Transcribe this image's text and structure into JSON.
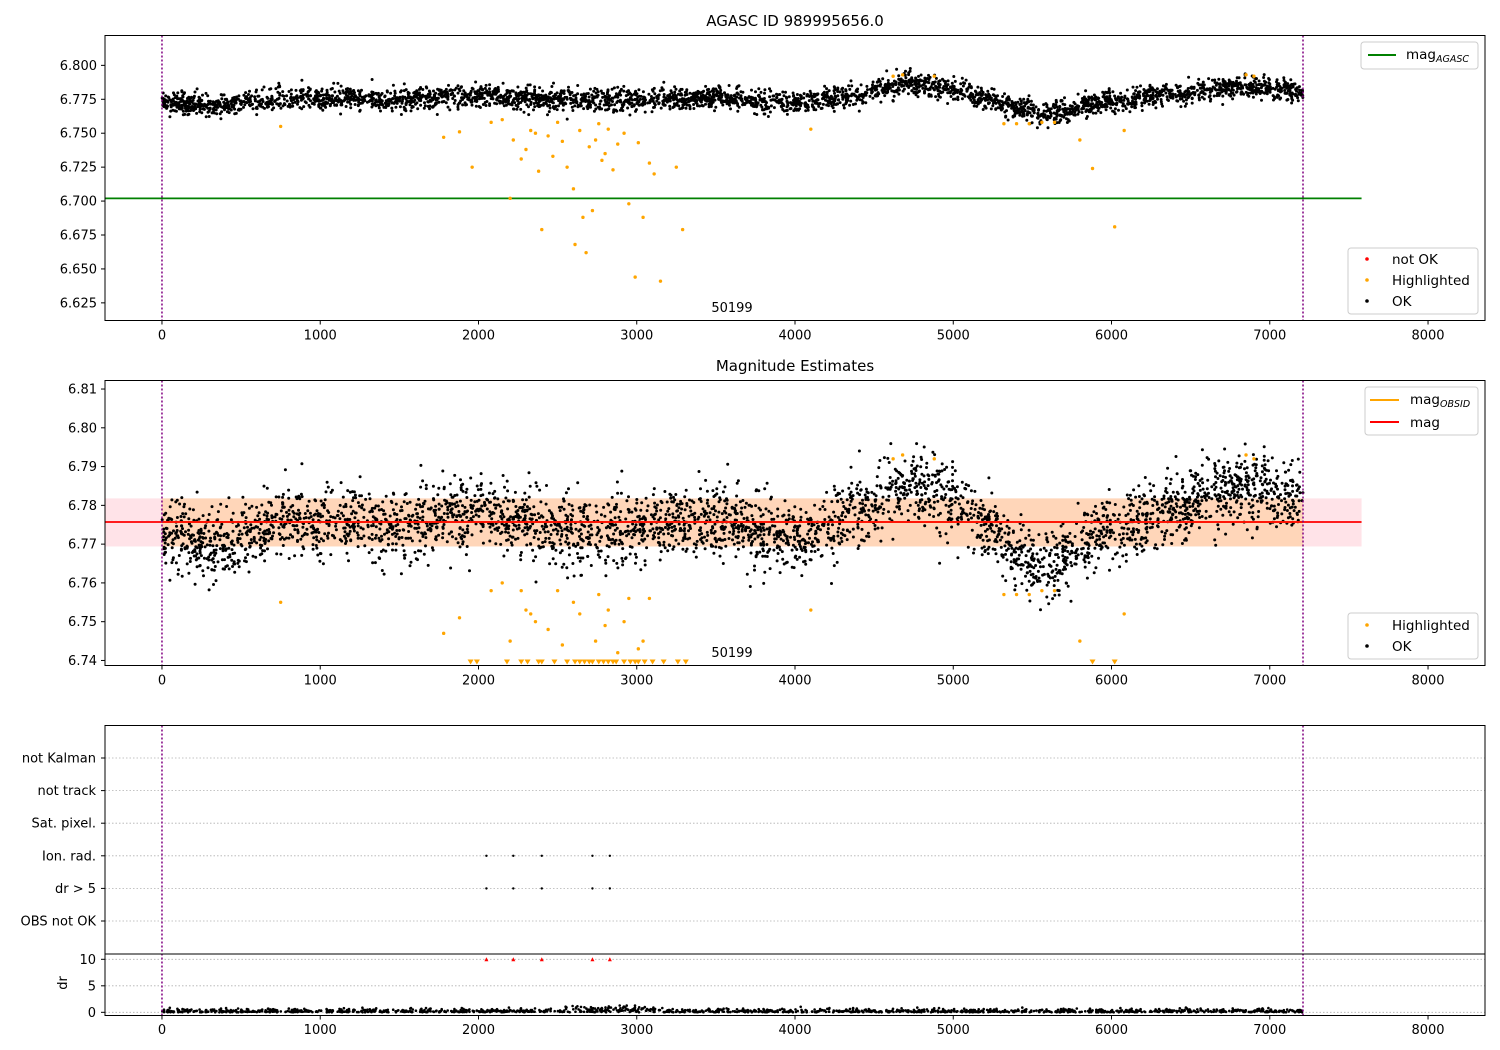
{
  "chart_data": [
    {
      "type": "scatter",
      "title": "AGASC ID 989995656.0",
      "xlim": [
        -360,
        8360
      ],
      "ylim": [
        6.612,
        6.822
      ],
      "xticks": [
        0,
        1000,
        2000,
        3000,
        4000,
        5000,
        6000,
        7000,
        8000
      ],
      "yticks": [
        6.625,
        6.65,
        6.675,
        6.7,
        6.725,
        6.75,
        6.775,
        6.8
      ],
      "ytick_labels": [
        "6.625",
        "6.650",
        "6.675",
        "6.700",
        "6.725",
        "6.750",
        "6.775",
        "6.800"
      ],
      "vlines": [
        0,
        7210
      ],
      "annotation": {
        "text": "50199",
        "x": 3610,
        "y": 6.619
      },
      "hlines": [
        {
          "label": "mag_AGASC",
          "y": 6.702,
          "x0": -360,
          "x1": 7580,
          "color": "#008000"
        }
      ],
      "ok_trend": {
        "x": [
          0,
          300,
          800,
          1500,
          2000,
          2500,
          3000,
          3500,
          4000,
          4400,
          4700,
          5000,
          5300,
          5600,
          5900,
          6300,
          6800,
          7200
        ],
        "y": [
          6.773,
          6.77,
          6.776,
          6.775,
          6.778,
          6.774,
          6.774,
          6.776,
          6.772,
          6.778,
          6.788,
          6.782,
          6.772,
          6.764,
          6.772,
          6.778,
          6.784,
          6.781
        ],
        "spread": 0.004
      },
      "highlighted": {
        "x": [
          750,
          1780,
          1880,
          1960,
          2080,
          2150,
          2200,
          2220,
          2270,
          2300,
          2330,
          2360,
          2380,
          2400,
          2440,
          2470,
          2500,
          2530,
          2560,
          2600,
          2610,
          2640,
          2660,
          2680,
          2700,
          2720,
          2740,
          2760,
          2780,
          2800,
          2820,
          2850,
          2880,
          2920,
          2950,
          2990,
          3010,
          3040,
          3080,
          3110,
          3150,
          3250,
          3290,
          4100,
          4620,
          4680,
          4880,
          5320,
          5400,
          5480,
          5560,
          5640,
          5800,
          5880,
          6020,
          6080,
          6850,
          6900
        ],
        "y": [
          6.755,
          6.747,
          6.751,
          6.725,
          6.758,
          6.76,
          6.702,
          6.745,
          6.731,
          6.738,
          6.752,
          6.75,
          6.722,
          6.679,
          6.748,
          6.733,
          6.758,
          6.744,
          6.725,
          6.709,
          6.668,
          6.752,
          6.688,
          6.662,
          6.74,
          6.693,
          6.745,
          6.757,
          6.73,
          6.735,
          6.753,
          6.723,
          6.742,
          6.75,
          6.698,
          6.644,
          6.743,
          6.688,
          6.728,
          6.72,
          6.641,
          6.725,
          6.679,
          6.753,
          6.792,
          6.793,
          6.792,
          6.757,
          6.757,
          6.757,
          6.758,
          6.758,
          6.745,
          6.724,
          6.681,
          6.752,
          6.793,
          6.792
        ]
      },
      "not_ok": {
        "x": [],
        "y": []
      },
      "legend_lines": [
        "mag_AGASC"
      ],
      "legend_points": [
        "not OK",
        "Highlighted",
        "OK"
      ],
      "legend_placement": "top-right / bottom-right"
    },
    {
      "type": "scatter",
      "title": "Magnitude Estimates",
      "xlim": [
        -360,
        8360
      ],
      "ylim": [
        6.7387,
        6.8122
      ],
      "xticks": [
        0,
        1000,
        2000,
        3000,
        4000,
        5000,
        6000,
        7000,
        8000
      ],
      "yticks": [
        6.74,
        6.75,
        6.76,
        6.77,
        6.78,
        6.79,
        6.8,
        6.81
      ],
      "ytick_labels": [
        "6.74",
        "6.75",
        "6.76",
        "6.77",
        "6.78",
        "6.79",
        "6.80",
        "6.81"
      ],
      "vlines": [
        0,
        7210
      ],
      "annotation": {
        "text": "50199",
        "x": 3610,
        "y": 6.7405
      },
      "bands": [
        {
          "y0": 6.7694,
          "y1": 6.7818,
          "x0": -360,
          "x1": 7580,
          "color": "#ffc0cb"
        },
        {
          "y0": 6.7694,
          "y1": 6.7818,
          "x0": 0,
          "x1": 7210,
          "color": "#ffa500"
        }
      ],
      "hlines": [
        {
          "label": "mag_OBSID",
          "y": 6.7757,
          "x0": 0,
          "x1": 7210,
          "color": "#ffa500"
        },
        {
          "label": "mag",
          "y": 6.7757,
          "x0": -360,
          "x1": 7580,
          "color": "#ff0000"
        }
      ],
      "ok_trend": {
        "x": [
          0,
          300,
          800,
          1500,
          2000,
          2500,
          3000,
          3500,
          4000,
          4400,
          4700,
          5000,
          5300,
          5600,
          5900,
          6300,
          6800,
          7200
        ],
        "y": [
          6.773,
          6.769,
          6.776,
          6.775,
          6.778,
          6.773,
          6.774,
          6.777,
          6.771,
          6.778,
          6.786,
          6.782,
          6.771,
          6.764,
          6.772,
          6.778,
          6.785,
          6.781
        ],
        "spread": 0.0045
      },
      "highlighted": {
        "x": [
          750,
          1780,
          1880,
          2080,
          2150,
          2200,
          2270,
          2300,
          2330,
          2360,
          2440,
          2500,
          2530,
          2600,
          2640,
          2740,
          2760,
          2800,
          2820,
          2880,
          2920,
          2950,
          3010,
          3040,
          3080,
          4100,
          4620,
          4680,
          4880,
          5320,
          5400,
          5480,
          5560,
          5640,
          5800,
          6080,
          6850,
          6900
        ],
        "y": [
          6.755,
          6.747,
          6.751,
          6.758,
          6.76,
          6.745,
          6.758,
          6.753,
          6.752,
          6.75,
          6.748,
          6.758,
          6.744,
          6.755,
          6.752,
          6.745,
          6.757,
          6.749,
          6.753,
          6.742,
          6.75,
          6.756,
          6.743,
          6.745,
          6.756,
          6.753,
          6.792,
          6.793,
          6.792,
          6.757,
          6.757,
          6.757,
          6.758,
          6.758,
          6.745,
          6.752,
          6.793,
          6.792
        ]
      },
      "below_range": {
        "x": [
          1950,
          1990,
          2180,
          2270,
          2310,
          2380,
          2400,
          2480,
          2560,
          2610,
          2640,
          2670,
          2700,
          2720,
          2760,
          2790,
          2820,
          2850,
          2870,
          2920,
          2960,
          2990,
          3010,
          3050,
          3100,
          3170,
          3260,
          3310,
          5880,
          6020
        ]
      },
      "legend_lines": [
        "mag_OBSID",
        "mag"
      ],
      "legend_points": [
        "Highlighted",
        "OK"
      ],
      "legend_placement": "top-right / bottom-right"
    },
    {
      "type": "scatter",
      "title": "",
      "xlim": [
        -360,
        8360
      ],
      "flag_rows": [
        "not Kalman",
        "not track",
        "Sat. pixel.",
        "Ion. rad.",
        "dr > 5",
        "OBS not OK"
      ],
      "flag_points": {
        "Ion. rad.": [
          2050,
          2220,
          2400,
          2720,
          2830
        ],
        "dr > 5": [
          2050,
          2220,
          2400,
          2720,
          2830
        ]
      },
      "vlines": [
        0,
        7210
      ],
      "dr": {
        "ylabel": "dr",
        "ylim": [
          -0.6,
          11
        ],
        "yticks": [
          0,
          5,
          10
        ],
        "xticks": [
          0,
          1000,
          2000,
          3000,
          4000,
          5000,
          6000,
          7000,
          8000
        ],
        "clipped_points": {
          "x": [
            2050,
            2220,
            2400,
            2720,
            2830
          ],
          "y": 10
        },
        "typical": 0.3
      }
    }
  ],
  "legend_labels": {
    "mag_agasc_base": "mag",
    "mag_agasc_sub": "AGASC",
    "mag_obsid_base": "mag",
    "mag_obsid_sub": "OBSID",
    "mag": "mag",
    "not_ok": "not OK",
    "highlighted": "Highlighted",
    "ok": "OK"
  },
  "colors": {
    "ok": "#000000",
    "highlighted": "#ffa500",
    "not_ok": "#ff0000",
    "mag_agasc": "#008000",
    "mag_obsid": "#ffa500",
    "mag": "#ff0000",
    "band_outer": "#ffc0cb",
    "band_inner": "#ffa500",
    "vline": "#800080",
    "grid": "#b0b0b0"
  }
}
